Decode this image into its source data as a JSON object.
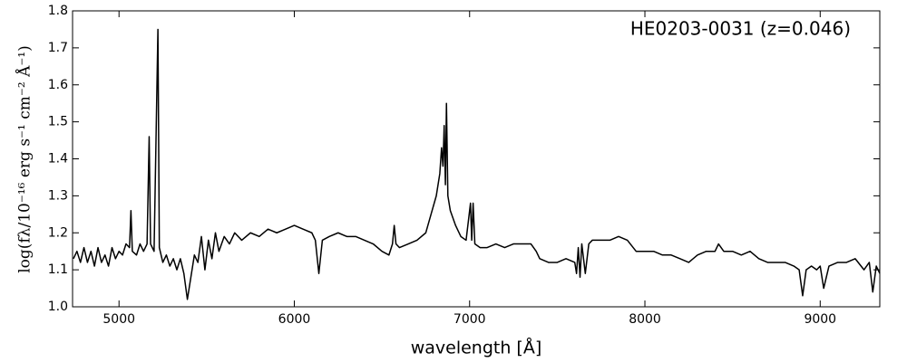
{
  "chart_data": {
    "type": "line",
    "annotation": "HE0203-0031 (z=0.046)",
    "x_label": "wavelength [Å]",
    "y_label": "log(fλ/10⁻¹⁶ erg s⁻¹ cm⁻² Å⁻¹)",
    "xlim": [
      4735,
      9340
    ],
    "ylim": [
      1.0,
      1.8
    ],
    "xticks": [
      5000,
      6000,
      7000,
      8000,
      9000
    ],
    "yticks": [
      {
        "value": 1,
        "label": "1.0"
      },
      1.1,
      1.2,
      1.3,
      1.4,
      1.5,
      1.6,
      1.7,
      1.8
    ],
    "color": "#000000",
    "x": [
      4740,
      4760,
      4780,
      4800,
      4820,
      4840,
      4860,
      4880,
      4900,
      4920,
      4940,
      4960,
      4980,
      5000,
      5020,
      5040,
      5060,
      5068,
      5076,
      5100,
      5120,
      5140,
      5160,
      5172,
      5180,
      5200,
      5222,
      5230,
      5250,
      5270,
      5290,
      5310,
      5330,
      5350,
      5370,
      5390,
      5410,
      5430,
      5450,
      5470,
      5490,
      5510,
      5530,
      5550,
      5570,
      5600,
      5630,
      5660,
      5700,
      5750,
      5800,
      5850,
      5900,
      5950,
      6000,
      6050,
      6100,
      6120,
      6140,
      6160,
      6200,
      6250,
      6300,
      6350,
      6400,
      6450,
      6500,
      6540,
      6560,
      6570,
      6580,
      6600,
      6650,
      6700,
      6750,
      6780,
      6810,
      6830,
      6840,
      6848,
      6855,
      6862,
      6868,
      6876,
      6890,
      6920,
      6950,
      6980,
      7005,
      7012,
      7020,
      7030,
      7060,
      7100,
      7150,
      7200,
      7250,
      7300,
      7350,
      7380,
      7400,
      7450,
      7500,
      7550,
      7600,
      7610,
      7620,
      7630,
      7640,
      7660,
      7680,
      7700,
      7750,
      7800,
      7850,
      7900,
      7950,
      8000,
      8050,
      8100,
      8150,
      8200,
      8250,
      8300,
      8350,
      8400,
      8420,
      8450,
      8500,
      8550,
      8600,
      8650,
      8700,
      8750,
      8800,
      8850,
      8880,
      8900,
      8920,
      8950,
      8980,
      9000,
      9020,
      9050,
      9100,
      9150,
      9200,
      9250,
      9280,
      9300,
      9320,
      9340
    ],
    "values": [
      1.13,
      1.15,
      1.12,
      1.16,
      1.12,
      1.15,
      1.11,
      1.16,
      1.12,
      1.14,
      1.11,
      1.16,
      1.13,
      1.15,
      1.14,
      1.17,
      1.16,
      1.26,
      1.15,
      1.14,
      1.17,
      1.15,
      1.17,
      1.46,
      1.17,
      1.15,
      1.75,
      1.16,
      1.12,
      1.14,
      1.11,
      1.13,
      1.1,
      1.13,
      1.09,
      1.02,
      1.08,
      1.14,
      1.12,
      1.19,
      1.1,
      1.18,
      1.13,
      1.2,
      1.15,
      1.19,
      1.17,
      1.2,
      1.18,
      1.2,
      1.19,
      1.21,
      1.2,
      1.21,
      1.22,
      1.21,
      1.2,
      1.18,
      1.09,
      1.18,
      1.19,
      1.2,
      1.19,
      1.19,
      1.18,
      1.17,
      1.15,
      1.14,
      1.17,
      1.22,
      1.17,
      1.16,
      1.17,
      1.18,
      1.2,
      1.25,
      1.3,
      1.36,
      1.43,
      1.38,
      1.49,
      1.33,
      1.55,
      1.3,
      1.26,
      1.22,
      1.19,
      1.18,
      1.28,
      1.18,
      1.28,
      1.17,
      1.16,
      1.16,
      1.17,
      1.16,
      1.17,
      1.17,
      1.17,
      1.15,
      1.13,
      1.12,
      1.12,
      1.13,
      1.12,
      1.09,
      1.16,
      1.08,
      1.17,
      1.09,
      1.17,
      1.18,
      1.18,
      1.18,
      1.19,
      1.18,
      1.15,
      1.15,
      1.15,
      1.14,
      1.14,
      1.13,
      1.12,
      1.14,
      1.15,
      1.15,
      1.17,
      1.15,
      1.15,
      1.14,
      1.15,
      1.13,
      1.12,
      1.12,
      1.12,
      1.11,
      1.1,
      1.03,
      1.1,
      1.11,
      1.1,
      1.11,
      1.05,
      1.11,
      1.12,
      1.12,
      1.13,
      1.1,
      1.12,
      1.04,
      1.11,
      1.09
    ]
  }
}
